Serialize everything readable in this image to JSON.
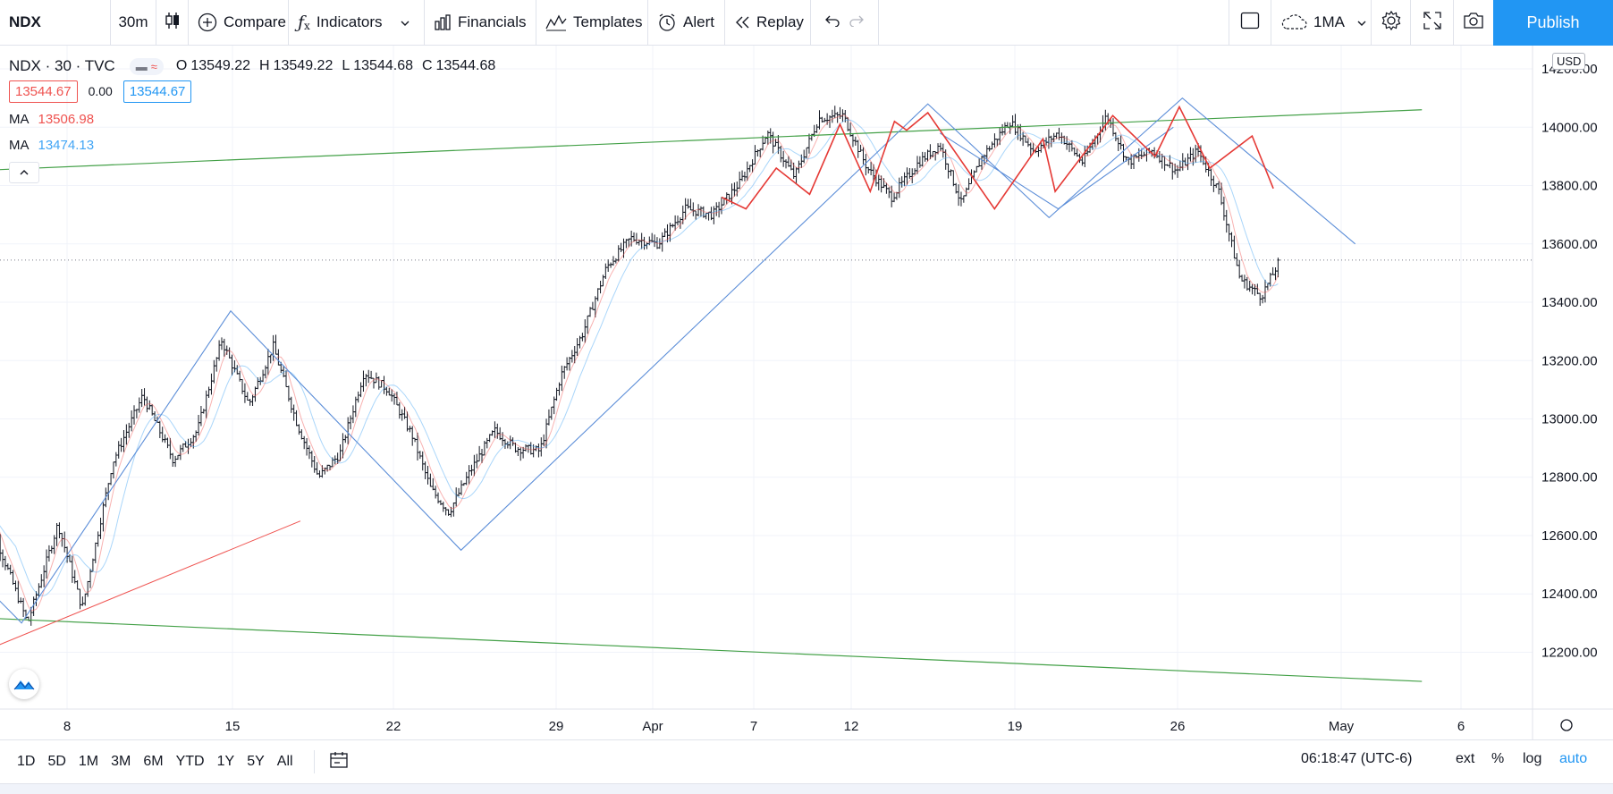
{
  "toolbar": {
    "symbol": "NDX",
    "interval": "30m",
    "compare_label": "Compare",
    "indicators_label": "Indicators",
    "financials_label": "Financials",
    "templates_label": "Templates",
    "alert_label": "Alert",
    "replay_label": "Replay",
    "layout_label": "1MA",
    "publish_label": "Publish"
  },
  "legend": {
    "title": "NDX · 30 · TVC",
    "ohlc": [
      {
        "label": "O",
        "value": "13549.22"
      },
      {
        "label": "H",
        "value": "13549.22"
      },
      {
        "label": "L",
        "value": "13544.68"
      },
      {
        "label": "C",
        "value": "13544.68"
      }
    ],
    "bid": "13544.67",
    "change": "0.00",
    "ask": "13544.67",
    "ma1_label": "MA",
    "ma1_value": "13506.98",
    "ma2_label": "MA",
    "ma2_value": "13474.13"
  },
  "currency": "USD",
  "chart_data": {
    "type": "bar",
    "symbol": "NDX",
    "interval": "30",
    "ylim": [
      12050,
      14300
    ],
    "y_ticks": [
      "14200.00",
      "14000.00",
      "13800.00",
      "13600.00",
      "13400.00",
      "13200.00",
      "13000.00",
      "12800.00",
      "12600.00",
      "12400.00",
      "12200.00"
    ],
    "x_ticks": [
      "8",
      "15",
      "22",
      "29",
      "Apr",
      "7",
      "12",
      "19",
      "26",
      "May",
      "6"
    ],
    "last_price": 13544.68,
    "path_points": [
      {
        "d": 0.0,
        "p": 12720
      },
      {
        "d": 1.5,
        "p": 12300
      },
      {
        "d": 2.5,
        "p": 12640
      },
      {
        "d": 3.3,
        "p": 12350
      },
      {
        "d": 4.3,
        "p": 12850
      },
      {
        "d": 5.3,
        "p": 13080
      },
      {
        "d": 6.3,
        "p": 12860
      },
      {
        "d": 7.1,
        "p": 12960
      },
      {
        "d": 7.9,
        "p": 13270
      },
      {
        "d": 8.8,
        "p": 13050
      },
      {
        "d": 9.6,
        "p": 13250
      },
      {
        "d": 10.4,
        "p": 12980
      },
      {
        "d": 11.1,
        "p": 12800
      },
      {
        "d": 11.8,
        "p": 12880
      },
      {
        "d": 12.6,
        "p": 13160
      },
      {
        "d": 13.4,
        "p": 13100
      },
      {
        "d": 14.2,
        "p": 12940
      },
      {
        "d": 14.8,
        "p": 12760
      },
      {
        "d": 15.4,
        "p": 12680
      },
      {
        "d": 16.1,
        "p": 12820
      },
      {
        "d": 16.9,
        "p": 12960
      },
      {
        "d": 17.6,
        "p": 12900
      },
      {
        "d": 18.4,
        "p": 12890
      },
      {
        "d": 19.1,
        "p": 13150
      },
      {
        "d": 19.8,
        "p": 13290
      },
      {
        "d": 20.6,
        "p": 13520
      },
      {
        "d": 21.4,
        "p": 13620
      },
      {
        "d": 22.3,
        "p": 13600
      },
      {
        "d": 23.2,
        "p": 13720
      },
      {
        "d": 24.1,
        "p": 13700
      },
      {
        "d": 25.0,
        "p": 13810
      },
      {
        "d": 25.9,
        "p": 13980
      },
      {
        "d": 26.8,
        "p": 13830
      },
      {
        "d": 27.6,
        "p": 14030
      },
      {
        "d": 28.4,
        "p": 14040
      },
      {
        "d": 29.2,
        "p": 13860
      },
      {
        "d": 30.0,
        "p": 13760
      },
      {
        "d": 30.9,
        "p": 13880
      },
      {
        "d": 31.6,
        "p": 13940
      },
      {
        "d": 32.3,
        "p": 13740
      },
      {
        "d": 33.0,
        "p": 13900
      },
      {
        "d": 33.9,
        "p": 14020
      },
      {
        "d": 34.7,
        "p": 13920
      },
      {
        "d": 35.5,
        "p": 13980
      },
      {
        "d": 36.3,
        "p": 13880
      },
      {
        "d": 37.1,
        "p": 14040
      },
      {
        "d": 37.8,
        "p": 13880
      },
      {
        "d": 38.6,
        "p": 13920
      },
      {
        "d": 39.4,
        "p": 13850
      },
      {
        "d": 40.1,
        "p": 13920
      },
      {
        "d": 40.8,
        "p": 13780
      },
      {
        "d": 41.5,
        "p": 13480
      },
      {
        "d": 42.2,
        "p": 13420
      },
      {
        "d": 42.8,
        "p": 13540
      }
    ],
    "series": [
      {
        "name": "MA",
        "value": 13506.98,
        "color": "#ef5350"
      },
      {
        "name": "MA",
        "value": 13474.13,
        "color": "#42a5f5"
      }
    ]
  },
  "drawings": {
    "green_top": {
      "from": {
        "d": -0.5,
        "p": 13850
      },
      "to": {
        "d": 47.5,
        "p": 14060
      }
    },
    "green_bottom": {
      "from": {
        "d": -0.5,
        "p": 12320
      },
      "to": {
        "d": 47.5,
        "p": 12100
      }
    },
    "red_trend": {
      "from": {
        "d": -0.5,
        "p": 12180
      },
      "to": {
        "d": 10.5,
        "p": 12650
      }
    },
    "blue_zigzag": [
      {
        "d": -0.5,
        "p": 12490
      },
      {
        "d": 1.3,
        "p": 12300
      },
      {
        "d": 8.2,
        "p": 13370
      },
      {
        "d": 15.8,
        "p": 12550
      },
      {
        "d": 31.2,
        "p": 14080
      },
      {
        "d": 35.2,
        "p": 13690
      },
      {
        "d": 39.6,
        "p": 14100
      },
      {
        "d": 45.3,
        "p": 13600
      }
    ],
    "blue_parallel": [
      {
        "d": 31.6,
        "p": 13980
      },
      {
        "d": 35.5,
        "p": 13720
      },
      {
        "d": 39.3,
        "p": 14000
      }
    ],
    "red_zigzag": [
      {
        "d": 24.4,
        "p": 13760
      },
      {
        "d": 25.2,
        "p": 13720
      },
      {
        "d": 26.2,
        "p": 13860
      },
      {
        "d": 27.3,
        "p": 13770
      },
      {
        "d": 28.3,
        "p": 14010
      },
      {
        "d": 29.3,
        "p": 13780
      },
      {
        "d": 30.1,
        "p": 14020
      },
      {
        "d": 30.5,
        "p": 13990
      },
      {
        "d": 31.2,
        "p": 14050
      },
      {
        "d": 33.4,
        "p": 13720
      },
      {
        "d": 35.0,
        "p": 13960
      },
      {
        "d": 35.4,
        "p": 13780
      },
      {
        "d": 37.3,
        "p": 14040
      },
      {
        "d": 38.7,
        "p": 13900
      },
      {
        "d": 39.5,
        "p": 14070
      },
      {
        "d": 40.5,
        "p": 13860
      },
      {
        "d": 41.9,
        "p": 13970
      },
      {
        "d": 42.6,
        "p": 13790
      }
    ]
  },
  "range_buttons": [
    "1D",
    "5D",
    "1M",
    "3M",
    "6M",
    "YTD",
    "1Y",
    "5Y",
    "All"
  ],
  "status": {
    "clock": "06:18:47 (UTC-6)",
    "ext_label": "ext",
    "percent_label": "%",
    "log_label": "log",
    "auto_label": "auto"
  },
  "colors": {
    "accent": "#2196f3",
    "red": "#ef5350",
    "green_line": "#43a047",
    "blue_line": "#5c8ed8",
    "bar": "#131722"
  },
  "icons": [
    "candles-icon",
    "compare-plus-icon",
    "indicators-fx-icon",
    "chevron-down-icon",
    "financials-icon",
    "templates-icon",
    "alert-clock-icon",
    "replay-icon",
    "undo-icon",
    "redo-icon",
    "rectangle-icon",
    "cloud-icon",
    "gear-icon",
    "fullscreen-icon",
    "camera-icon",
    "chevron-up-icon",
    "tradingview-logo-icon",
    "calendar-icon"
  ]
}
